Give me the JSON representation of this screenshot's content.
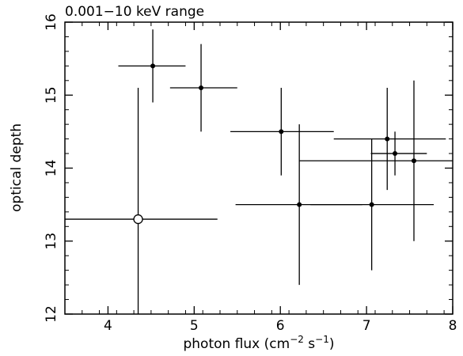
{
  "chart_data": {
    "type": "scatter",
    "title": "0.001−10 keV range",
    "xlabel": "photon flux (cm",
    "xlabel_sup1": "−2",
    "xlabel_mid": " s",
    "xlabel_sup2": "−1",
    "xlabel_end": ")",
    "ylabel": "optical depth",
    "xlim": [
      3.5,
      8
    ],
    "ylim": [
      12,
      16
    ],
    "x_ticks": [
      4,
      5,
      6,
      7,
      8
    ],
    "y_ticks": [
      12,
      13,
      14,
      15,
      16
    ],
    "grid": false,
    "points": [
      {
        "x": 4.52,
        "y": 15.4,
        "xerr": [
          4.12,
          4.9
        ],
        "yerr": [
          14.9,
          15.9
        ],
        "marker": "filled"
      },
      {
        "x": 5.08,
        "y": 15.1,
        "xerr": [
          4.72,
          5.5
        ],
        "yerr": [
          14.5,
          15.7
        ],
        "marker": "filled"
      },
      {
        "x": 6.01,
        "y": 14.5,
        "xerr": [
          5.42,
          6.62
        ],
        "yerr": [
          13.9,
          15.1
        ],
        "marker": "filled"
      },
      {
        "x": 6.22,
        "y": 13.5,
        "xerr": [
          5.48,
          6.95
        ],
        "yerr": [
          12.4,
          14.6
        ],
        "marker": "filled"
      },
      {
        "x": 7.06,
        "y": 13.5,
        "xerr": [
          6.35,
          7.78
        ],
        "yerr": [
          12.6,
          14.4
        ],
        "marker": "filled"
      },
      {
        "x": 7.24,
        "y": 14.4,
        "xerr": [
          6.62,
          7.92
        ],
        "yerr": [
          13.7,
          15.1
        ],
        "marker": "filled"
      },
      {
        "x": 7.33,
        "y": 14.2,
        "xerr": [
          7.05,
          7.7
        ],
        "yerr": [
          13.9,
          14.5
        ],
        "marker": "filled"
      },
      {
        "x": 7.55,
        "y": 14.1,
        "xerr": [
          6.22,
          8.0
        ],
        "yerr": [
          13.0,
          15.2
        ],
        "marker": "filled"
      },
      {
        "x": 4.35,
        "y": 13.3,
        "xerr": [
          3.5,
          5.27
        ],
        "yerr": [
          12.0,
          15.1
        ],
        "marker": "open"
      }
    ]
  }
}
